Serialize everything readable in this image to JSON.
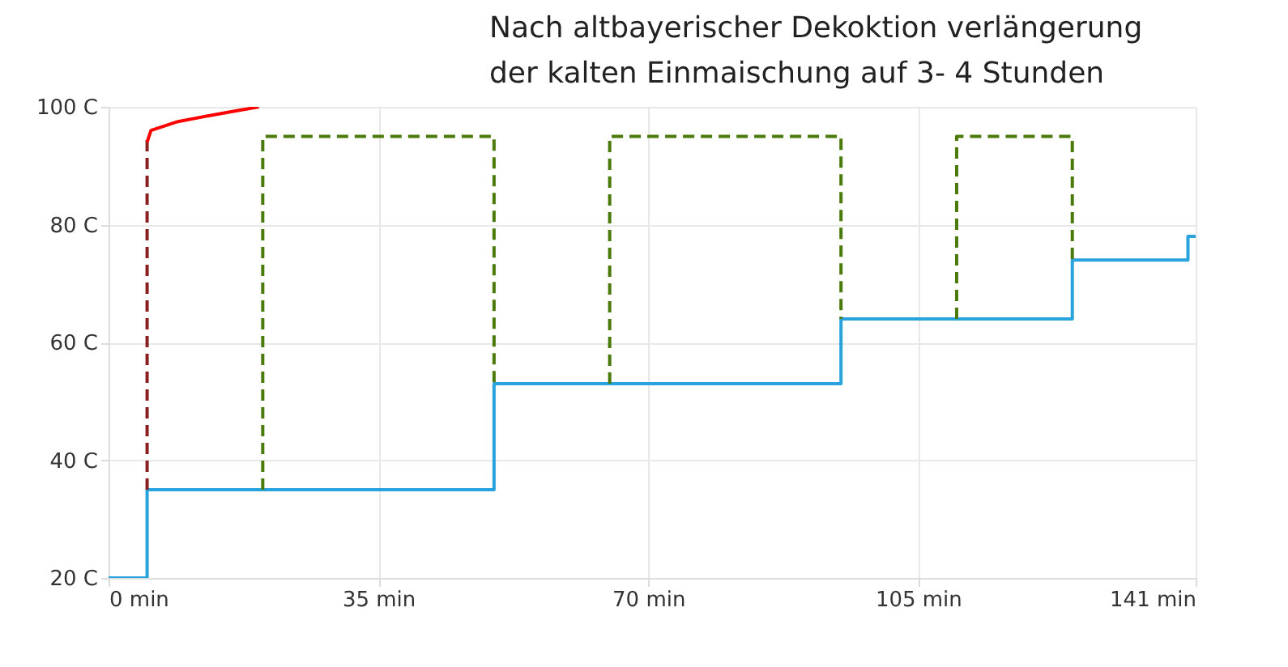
{
  "chart_data": {
    "type": "line",
    "annotations": [
      "Nach altbayerischer Dekoktion verlängerung der kalten Einmaischung auf 3- 4 Stunden"
    ],
    "xlim": [
      0,
      141
    ],
    "xticks": [
      {
        "value": 0,
        "label": "0 min"
      },
      {
        "value": 35,
        "label": "35 min"
      },
      {
        "value": 70,
        "label": "70 min"
      },
      {
        "value": 105,
        "label": "105 min"
      },
      {
        "value": 141,
        "label": "141 min"
      }
    ],
    "ylim": [
      20,
      100
    ],
    "yticks": [
      {
        "value": 20,
        "label": "20 C"
      },
      {
        "value": 40,
        "label": "40 C"
      },
      {
        "value": 60,
        "label": "60 C"
      },
      {
        "value": 80,
        "label": "80 C"
      },
      {
        "value": 100,
        "label": "100 C"
      }
    ],
    "grid": true,
    "marker": "none",
    "series": [
      {
        "type": "step",
        "color": "#29a3dd",
        "line_style": "solid",
        "x": [
          0,
          5,
          50,
          95,
          125,
          140,
          141
        ],
        "values": [
          20,
          35,
          53,
          64,
          74,
          78,
          78
        ]
      },
      {
        "color": "#4a7a0a",
        "line_style": "dashed",
        "x": [
          20,
          20,
          50,
          50
        ],
        "values": [
          35,
          95,
          95,
          53
        ]
      },
      {
        "color": "#4a7a0a",
        "line_style": "dashed",
        "x": [
          65,
          65,
          95,
          95
        ],
        "values": [
          53,
          95,
          95,
          64
        ]
      },
      {
        "color": "#4a7a0a",
        "line_style": "dashed",
        "x": [
          110,
          110,
          125,
          125
        ],
        "values": [
          64,
          95,
          95,
          74
        ]
      },
      {
        "color": "#8b1e1e",
        "line_style": "dashed",
        "x": [
          5,
          5
        ],
        "values": [
          35,
          95
        ]
      },
      {
        "color": "#ff0000",
        "line_style": "solid",
        "x": [
          5,
          5.5,
          9,
          13,
          16.5,
          19.5
        ],
        "values": [
          94,
          96,
          97.5,
          98.5,
          99.3,
          100
        ]
      }
    ]
  }
}
